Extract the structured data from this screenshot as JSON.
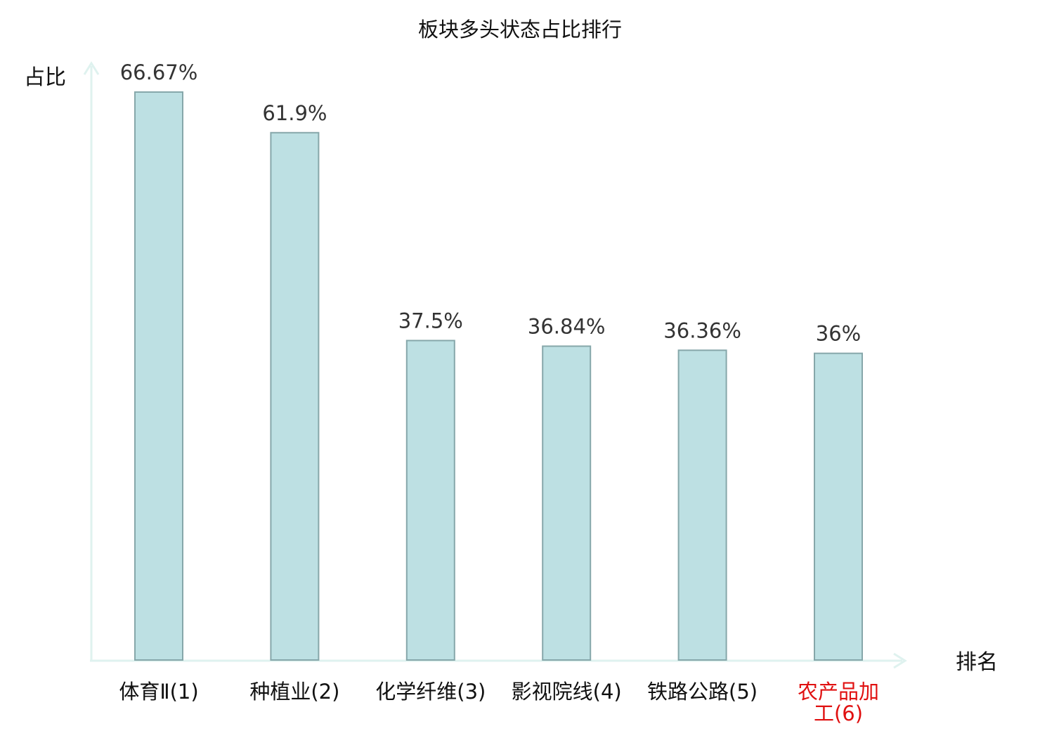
{
  "chart_data": {
    "type": "bar",
    "title": "板块多头状态占比排行",
    "ylabel": "占比",
    "xlabel": "排名",
    "categories": [
      {
        "name": "体育Ⅱ",
        "rank": "(1)",
        "highlight": false
      },
      {
        "name": "种植业",
        "rank": "(2)",
        "highlight": false
      },
      {
        "name": "化学纤维",
        "rank": "(3)",
        "highlight": false
      },
      {
        "name": "影视院线",
        "rank": "(4)",
        "highlight": false
      },
      {
        "name": "铁路公路",
        "rank": "(5)",
        "highlight": false
      },
      {
        "name": "农产品加",
        "name_line2": "工",
        "rank": "(6)",
        "highlight": true
      }
    ],
    "values": [
      66.67,
      61.9,
      37.5,
      36.84,
      36.36,
      36
    ],
    "value_labels": [
      "66.67%",
      "61.9%",
      "37.5%",
      "36.84%",
      "36.36%",
      "36%"
    ],
    "ylim": [
      0,
      70
    ],
    "grid": false,
    "colors": {
      "bar_fill": "#bde0e3",
      "bar_stroke": "#86a7aa",
      "axis": "#dff2ef",
      "label": "#111111",
      "value_label": "#333333",
      "highlight_label": "#e01010"
    }
  }
}
